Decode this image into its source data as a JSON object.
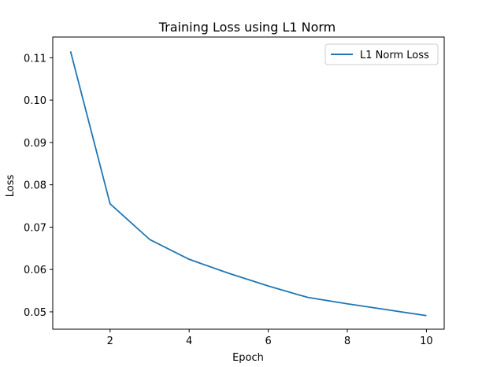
{
  "chart_data": {
    "type": "line",
    "title": "Training Loss using L1 Norm",
    "xlabel": "Epoch",
    "ylabel": "Loss",
    "xlim": [
      0.55,
      10.45
    ],
    "ylim": [
      0.0459,
      0.1149
    ],
    "xticks": [
      2,
      4,
      6,
      8,
      10
    ],
    "yticks": [
      0.05,
      0.06,
      0.07,
      0.08,
      0.09,
      0.1,
      0.11
    ],
    "ytick_labels": [
      "0.05",
      "0.06",
      "0.07",
      "0.08",
      "0.09",
      "0.10",
      "0.11"
    ],
    "grid": false,
    "legend": "top-right",
    "series": [
      {
        "name": "L1 Norm Loss",
        "color": "#1f77b4",
        "x": [
          1,
          2,
          3,
          4,
          5,
          6,
          7,
          8,
          9,
          10
        ],
        "values": [
          0.1115,
          0.0755,
          0.0671,
          0.0624,
          0.0591,
          0.0561,
          0.0534,
          0.0519,
          0.0505,
          0.0491
        ]
      }
    ]
  }
}
